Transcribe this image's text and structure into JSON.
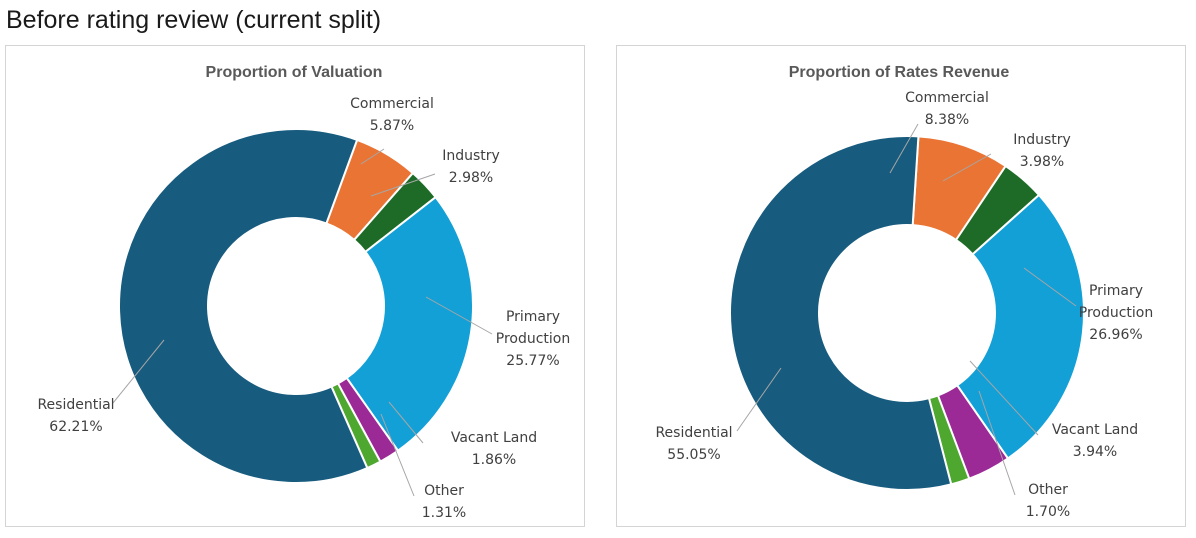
{
  "heading": "Before rating review (current split)",
  "chart_data": [
    {
      "type": "pie",
      "title": "Proportion of Valuation",
      "categories": [
        "Commercial",
        "Industry",
        "Primary Production",
        "Vacant Land",
        "Other",
        "Residential"
      ],
      "values": [
        5.87,
        2.98,
        25.77,
        1.86,
        1.31,
        62.21
      ],
      "value_labels": [
        "5.87%",
        "2.98%",
        "25.77%",
        "1.86%",
        "1.31%",
        "62.21%"
      ],
      "colors": [
        "#EA7434",
        "#1E6B27",
        "#12A0D7",
        "#9B2A96",
        "#4EA72E",
        "#175B7E"
      ],
      "legend": "none"
    },
    {
      "type": "pie",
      "title": "Proportion of Rates Revenue",
      "categories": [
        "Commercial",
        "Industry",
        "Primary Production",
        "Vacant Land",
        "Other",
        "Residential"
      ],
      "values": [
        8.38,
        3.98,
        26.96,
        3.94,
        1.7,
        55.05
      ],
      "value_labels": [
        "8.38%",
        "3.98%",
        "26.96%",
        "3.94%",
        "1.70%",
        "55.05%"
      ],
      "colors": [
        "#EA7434",
        "#1E6B27",
        "#12A0D7",
        "#9B2A96",
        "#4EA72E",
        "#175B7E"
      ],
      "legend": "none"
    }
  ]
}
